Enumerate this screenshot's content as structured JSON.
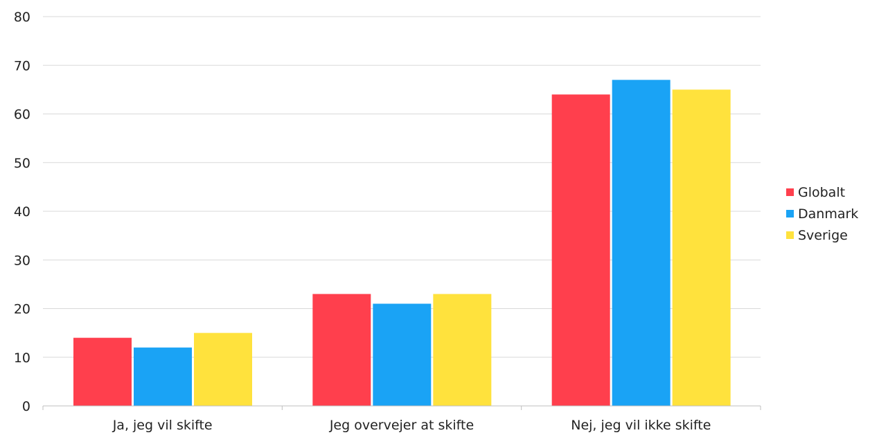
{
  "chart_data": {
    "type": "bar",
    "title": "",
    "xlabel": "",
    "ylabel": "",
    "categories": [
      "Ja, jeg vil skifte",
      "Jeg overvejer at skifte",
      "Nej, jeg vil ikke skifte"
    ],
    "series": [
      {
        "name": "Globalt",
        "color": "#ff3f4d",
        "values": [
          14,
          23,
          64
        ]
      },
      {
        "name": "Danmark",
        "color": "#1aa3f5",
        "values": [
          12,
          21,
          67
        ]
      },
      {
        "name": "Sverige",
        "color": "#ffe23d",
        "values": [
          15,
          23,
          65
        ]
      }
    ],
    "ylim": [
      0,
      80
    ],
    "yticks": [
      "0",
      "10",
      "20",
      "30",
      "40",
      "50",
      "60",
      "70",
      "80"
    ],
    "grid": true,
    "legend_position": "right"
  }
}
